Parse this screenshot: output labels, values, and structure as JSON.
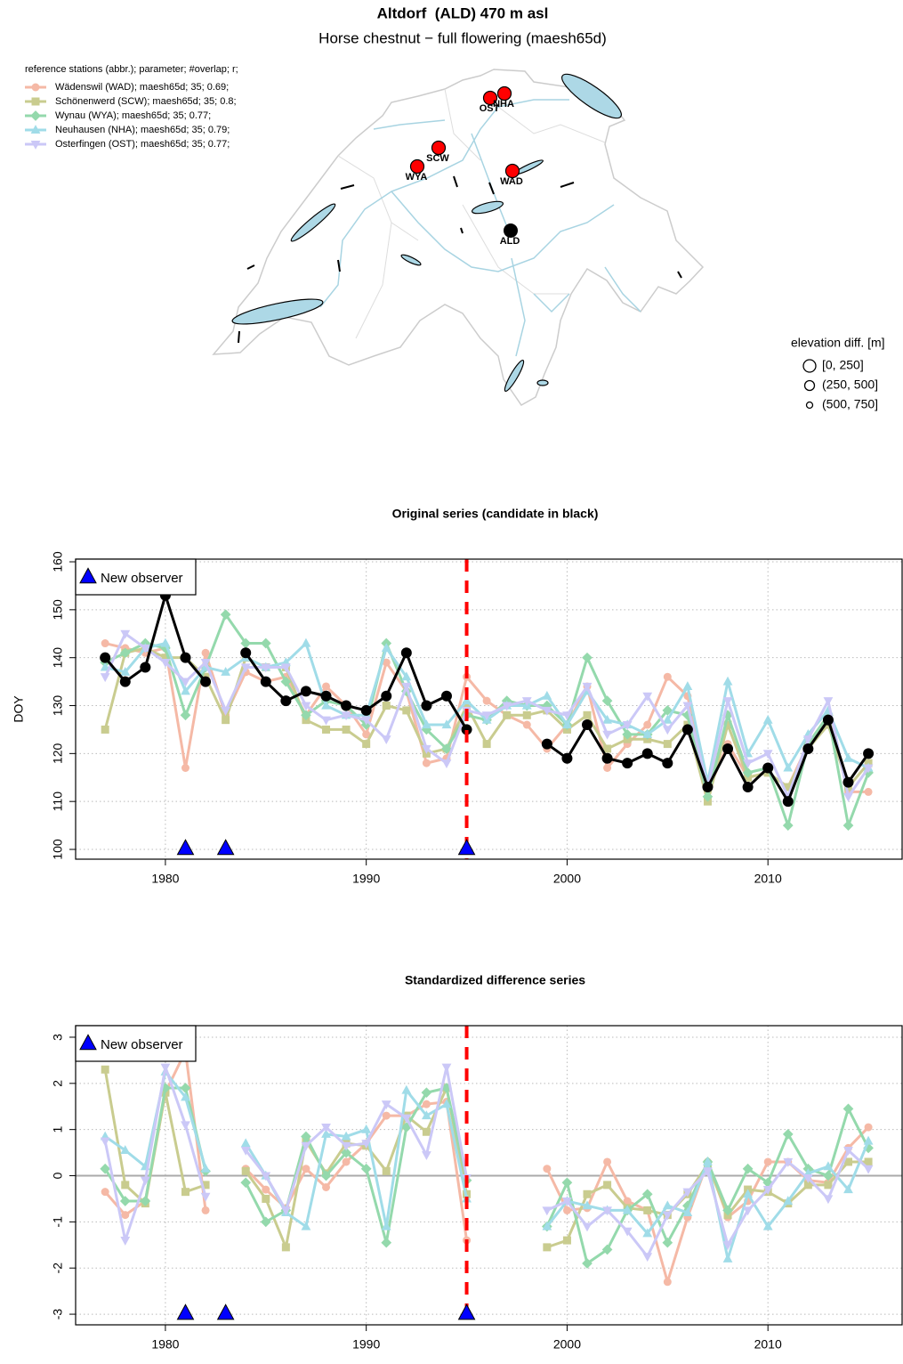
{
  "header": {
    "title": "Altdorf  (ALD) 470 m asl",
    "subtitle": "Horse chestnut − full flowering (maesh65d)"
  },
  "map": {
    "legend_title": "reference stations (abbr.); parameter; #overlap; r;",
    "stations": [
      {
        "label": "OST"
      },
      {
        "label": "NHA"
      },
      {
        "label": "SCW"
      },
      {
        "label": "WYA"
      },
      {
        "label": "WAD"
      }
    ],
    "station_color": "#ff0000",
    "candidate": {
      "label": "ALD",
      "color": "#000000"
    },
    "elevation_legend": {
      "title": "elevation diff. [m]",
      "labels": [
        "[0, 250]",
        "(250, 500]",
        "(500, 750]"
      ]
    }
  },
  "chart_data": [
    {
      "type": "line",
      "title": "Original series (candidate in black)",
      "ylabel": "DOY",
      "x": [
        1977,
        1978,
        1979,
        1980,
        1981,
        1982,
        1983,
        1984,
        1985,
        1986,
        1987,
        1988,
        1989,
        1990,
        1991,
        1992,
        1993,
        1994,
        1995,
        1996,
        1997,
        1998,
        1999,
        2000,
        2001,
        2002,
        2003,
        2004,
        2005,
        2006,
        2007,
        2008,
        2009,
        2010,
        2011,
        2012,
        2013,
        2014,
        2015
      ],
      "xlim": [
        1975.53,
        2016.68
      ],
      "xticks": [
        1980,
        1990,
        2000,
        2010
      ],
      "ylim": [
        97.96,
        160.56
      ],
      "yticks": [
        100,
        110,
        120,
        130,
        140,
        150,
        160
      ],
      "grid": true,
      "series": [
        {
          "name": "Wädenswil (WAD); maesh65d; 35; 0.69;",
          "color": "#f5b9a6",
          "marker": "circle",
          "values": [
            143,
            142,
            141,
            142,
            117,
            141,
            128,
            137,
            135,
            136,
            128,
            134,
            130,
            124,
            139,
            133,
            118,
            119,
            136,
            131,
            128,
            126,
            121,
            126,
            134,
            117,
            122,
            126,
            136,
            132,
            112,
            122,
            115,
            116,
            113,
            122,
            128,
            112,
            112
          ]
        },
        {
          "name": "Schönenwerd (SCW); maesh65d; 35; 0.8;",
          "color": "#c9cc8f",
          "marker": "square",
          "values": [
            125,
            141,
            142,
            140,
            140,
            136,
            127,
            140,
            138,
            138,
            127,
            125,
            125,
            122,
            130,
            129,
            120,
            121,
            130,
            122,
            128,
            128,
            129,
            125,
            128,
            121,
            123,
            123,
            122,
            126,
            110,
            126,
            115,
            116,
            113,
            121,
            126,
            113,
            118
          ]
        },
        {
          "name": "Wynau (WYA); maesh65d; 35; 0.77;",
          "color": "#94d9ac",
          "marker": "diamond",
          "values": [
            139,
            141,
            143,
            142,
            128,
            138,
            149,
            143,
            143,
            135,
            128,
            131,
            130,
            126,
            143,
            133,
            125,
            121,
            128,
            127,
            131,
            130,
            130,
            126,
            140,
            131,
            124,
            124,
            129,
            128,
            111,
            128,
            116,
            117,
            105,
            122,
            128,
            105,
            116
          ]
        },
        {
          "name": "Neuhausen (NHA); maesh65d; 35; 0.79;",
          "color": "#a0dce8",
          "marker": "triangle",
          "values": [
            138,
            137,
            142,
            143,
            133,
            138,
            137,
            140,
            138,
            139,
            143,
            130,
            128,
            128,
            142,
            136,
            126,
            126,
            131,
            127,
            130,
            130,
            132,
            126,
            133,
            127,
            126,
            124,
            127,
            134,
            114,
            135,
            120,
            127,
            117,
            124,
            129,
            119,
            117
          ]
        },
        {
          "name": "Osterfingen (OST); maesh65d; 35; 0.77;",
          "color": "#cbc8f7",
          "marker": "triangle-down",
          "values": [
            136,
            145,
            142,
            139,
            135,
            139,
            129,
            138,
            138,
            138,
            130,
            127,
            128,
            127,
            123,
            134,
            121,
            118,
            129,
            128,
            130,
            131,
            129,
            128,
            134,
            124,
            126,
            132,
            125,
            130,
            113,
            131,
            118,
            120,
            111,
            123,
            131,
            111,
            117
          ]
        }
      ],
      "candidate": {
        "color": "#000000",
        "marker": "circle",
        "values": [
          140,
          135,
          138,
          153,
          140,
          135,
          null,
          141,
          135,
          131,
          133,
          132,
          130,
          129,
          132,
          141,
          130,
          132,
          125,
          null,
          null,
          null,
          122,
          119,
          126,
          119,
          118,
          120,
          118,
          125,
          113,
          121,
          113,
          117,
          110,
          121,
          127,
          114,
          120
        ]
      },
      "events": {
        "label": "New observer",
        "color": "#0000ff",
        "x": [
          1981,
          1983,
          1995
        ],
        "y": [
          100,
          100,
          100
        ]
      },
      "break_x": 1995
    },
    {
      "type": "line",
      "title": "Standardized difference series",
      "x": [
        1977,
        1978,
        1979,
        1980,
        1981,
        1982,
        1983,
        1984,
        1985,
        1986,
        1987,
        1988,
        1989,
        1990,
        1991,
        1992,
        1993,
        1994,
        1995,
        1996,
        1997,
        1998,
        1999,
        2000,
        2001,
        2002,
        2003,
        2004,
        2005,
        2006,
        2007,
        2008,
        2009,
        2010,
        2011,
        2012,
        2013,
        2014,
        2015
      ],
      "xlim": [
        1975.53,
        2016.68
      ],
      "xticks": [
        1980,
        1990,
        2000,
        2010
      ],
      "ylim": [
        -3.23,
        3.25
      ],
      "yticks": [
        -3,
        -2,
        -1,
        0,
        1,
        2,
        3
      ],
      "grid": true,
      "hline": 0,
      "series": [
        {
          "color": "#f5b9a6",
          "marker": "circle",
          "values": [
            -0.35,
            -0.85,
            -0.55,
            1.8,
            2.7,
            -0.75,
            null,
            0.15,
            -0.3,
            -0.7,
            0.15,
            -0.25,
            0.3,
            0.7,
            1.3,
            1.3,
            1.55,
            1.6,
            -1.4,
            null,
            null,
            null,
            0.15,
            -0.75,
            -0.7,
            0.3,
            -0.55,
            -0.75,
            -2.3,
            -0.9,
            0.3,
            -0.9,
            -0.55,
            0.3,
            0.3,
            -0.1,
            -0.15,
            0.6,
            1.05
          ]
        },
        {
          "color": "#c9cc8f",
          "marker": "square",
          "values": [
            2.3,
            -0.2,
            -0.6,
            1.8,
            -0.35,
            -0.2,
            null,
            0.1,
            -0.5,
            -1.55,
            0.75,
            0.05,
            0.7,
            0.65,
            0.1,
            1.3,
            0.95,
            1.9,
            -0.4,
            null,
            null,
            null,
            -1.55,
            -1.4,
            -0.4,
            -0.2,
            -0.7,
            -0.75,
            -0.85,
            -0.4,
            0.25,
            -0.85,
            -0.3,
            -0.35,
            -0.6,
            -0.2,
            -0.2,
            0.3,
            0.3
          ]
        },
        {
          "color": "#94d9ac",
          "marker": "diamond",
          "values": [
            0.15,
            -0.55,
            -0.55,
            1.9,
            1.9,
            0.1,
            null,
            -0.15,
            -1.0,
            -0.75,
            0.85,
            0.0,
            0.5,
            0.15,
            -1.45,
            1.05,
            1.8,
            1.9,
            -0.1,
            null,
            null,
            null,
            -1.1,
            -0.15,
            -1.9,
            -1.6,
            -0.75,
            -0.4,
            -1.45,
            -0.65,
            0.3,
            -0.75,
            0.15,
            -0.15,
            0.9,
            0.15,
            0.0,
            1.45,
            0.6
          ]
        },
        {
          "color": "#a0dce8",
          "marker": "triangle",
          "values": [
            0.85,
            0.55,
            0.2,
            2.25,
            1.7,
            0.15,
            null,
            0.7,
            0.0,
            -0.8,
            -1.1,
            0.9,
            0.85,
            1.0,
            -1.1,
            1.85,
            1.3,
            1.55,
            -0.5,
            null,
            null,
            null,
            -1.1,
            -0.55,
            -0.65,
            -0.75,
            -0.75,
            -1.25,
            -0.65,
            -0.8,
            0.3,
            -1.8,
            -0.4,
            -1.1,
            -0.55,
            0.05,
            0.2,
            -0.3,
            0.75
          ]
        },
        {
          "color": "#cbc8f7",
          "marker": "triangle-down",
          "values": [
            0.75,
            -1.4,
            -0.1,
            2.35,
            1.1,
            -0.45,
            null,
            0.55,
            0.0,
            -0.75,
            0.65,
            1.05,
            0.65,
            0.7,
            1.55,
            1.25,
            0.45,
            2.35,
            -0.05,
            null,
            null,
            null,
            -0.75,
            -0.55,
            -1.1,
            -0.75,
            -1.2,
            -1.75,
            -0.85,
            -0.35,
            0.1,
            -1.5,
            -0.75,
            -0.3,
            0.3,
            -0.05,
            -0.5,
            0.55,
            0.15
          ]
        }
      ],
      "events": {
        "label": "New observer",
        "color": "#0000ff",
        "x": [
          1981,
          1983,
          1995
        ],
        "y": [
          -3,
          -3,
          -3
        ]
      },
      "break_x": 1995
    }
  ]
}
